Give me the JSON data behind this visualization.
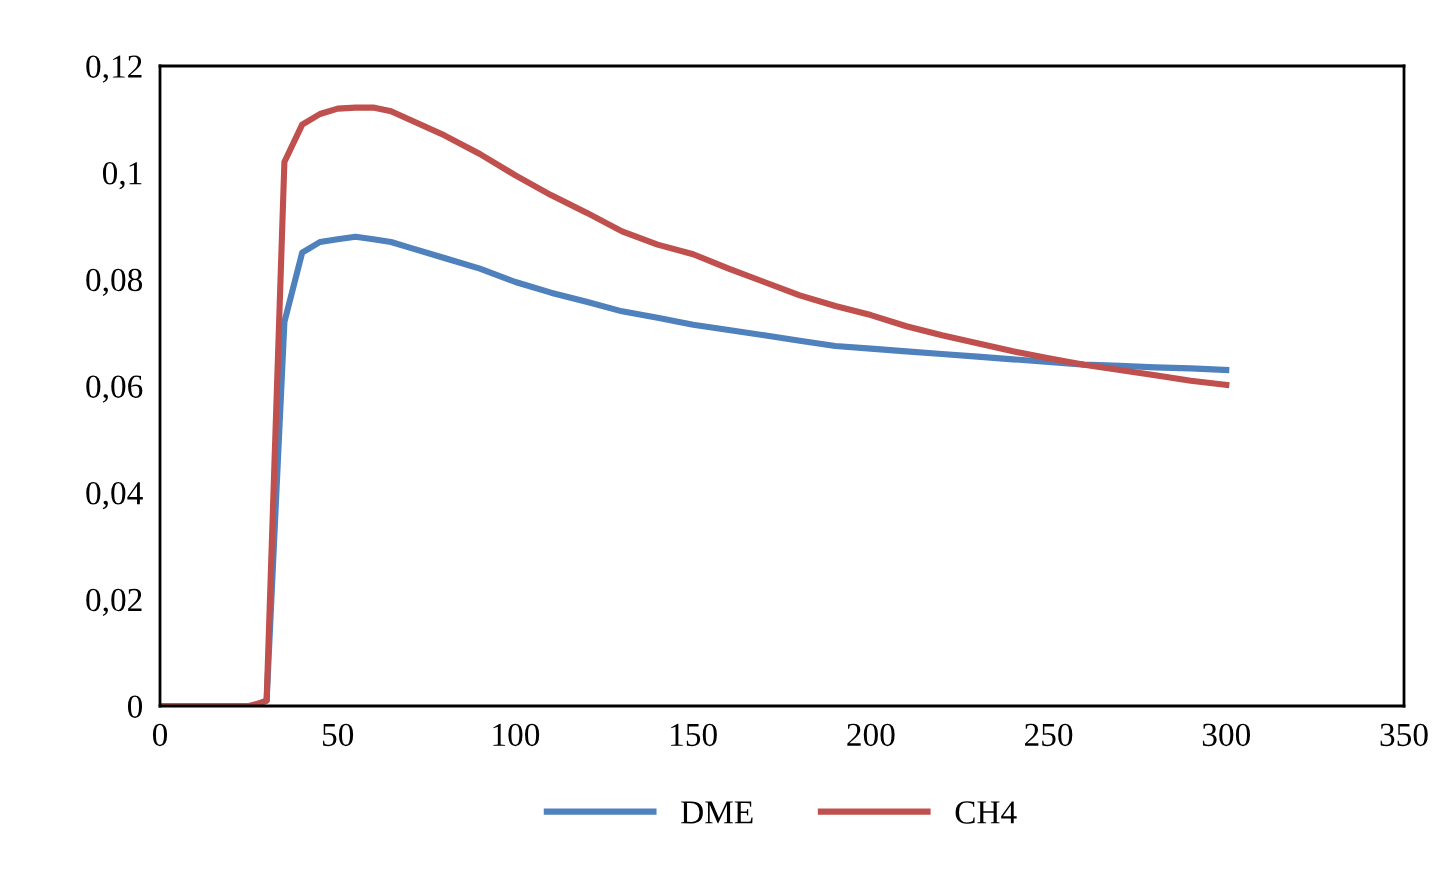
{
  "chart_data": {
    "type": "line",
    "xlim": [
      0,
      350
    ],
    "xticks": [
      0,
      50,
      100,
      150,
      200,
      250,
      300,
      350
    ],
    "ylim": [
      0,
      0.12
    ],
    "yticks": [
      {
        "value": 0,
        "label": "0"
      },
      {
        "value": 0.02,
        "label": "0,02"
      },
      {
        "value": 0.04,
        "label": "0,04"
      },
      {
        "value": 0.06,
        "label": "0,06"
      },
      {
        "value": 0.08,
        "label": "0,08"
      },
      {
        "value": 0.1,
        "label": "0,1"
      },
      {
        "value": 0.12,
        "label": "0,12"
      }
    ],
    "grid": false,
    "legend": "bottom",
    "marker": "none",
    "line_style": "solid",
    "x": [
      0,
      10,
      20,
      25,
      28,
      30,
      35,
      40,
      45,
      50,
      55,
      60,
      65,
      70,
      80,
      90,
      100,
      110,
      120,
      130,
      140,
      150,
      160,
      170,
      180,
      190,
      200,
      210,
      220,
      230,
      240,
      250,
      260,
      270,
      280,
      290,
      300
    ],
    "series": [
      {
        "name": "DME",
        "color": "#4f81bd",
        "values": [
          null,
          null,
          null,
          null,
          0.0005,
          0.001,
          0.072,
          0.085,
          0.087,
          0.0875,
          0.088,
          0.0875,
          0.087,
          0.086,
          0.084,
          0.082,
          0.0795,
          0.0775,
          0.0758,
          0.074,
          0.0728,
          0.0715,
          0.0705,
          0.0695,
          0.0685,
          0.0675,
          0.067,
          0.0665,
          0.066,
          0.0655,
          0.065,
          0.0645,
          0.064,
          0.0638,
          0.0635,
          0.0633,
          0.063
        ]
      },
      {
        "name": "CH4",
        "color": "#c0504d",
        "values": [
          0,
          0,
          0,
          0,
          0.0005,
          0.001,
          0.102,
          0.109,
          0.111,
          0.112,
          0.1122,
          0.1122,
          0.1115,
          0.11,
          0.107,
          0.1035,
          0.0995,
          0.0958,
          0.0925,
          0.089,
          0.0865,
          0.0847,
          0.082,
          0.0795,
          0.077,
          0.075,
          0.0733,
          0.0712,
          0.0695,
          0.068,
          0.0665,
          0.0652,
          0.064,
          0.063,
          0.062,
          0.061,
          0.0602
        ]
      }
    ]
  }
}
